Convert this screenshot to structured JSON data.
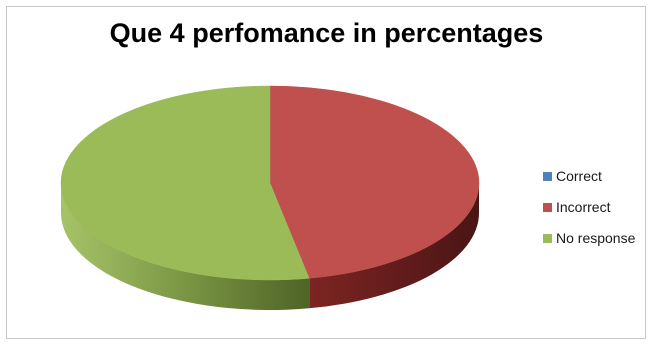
{
  "chart_data": {
    "type": "pie",
    "title": "Que 4 perfomance in percentages",
    "categories": [
      "Correct",
      "Incorrect",
      "No response"
    ],
    "values": [
      0,
      47,
      53
    ],
    "colors": [
      "#4f81bd",
      "#c0504d",
      "#9bbb59"
    ],
    "legend_position": "right",
    "style": "3d"
  }
}
